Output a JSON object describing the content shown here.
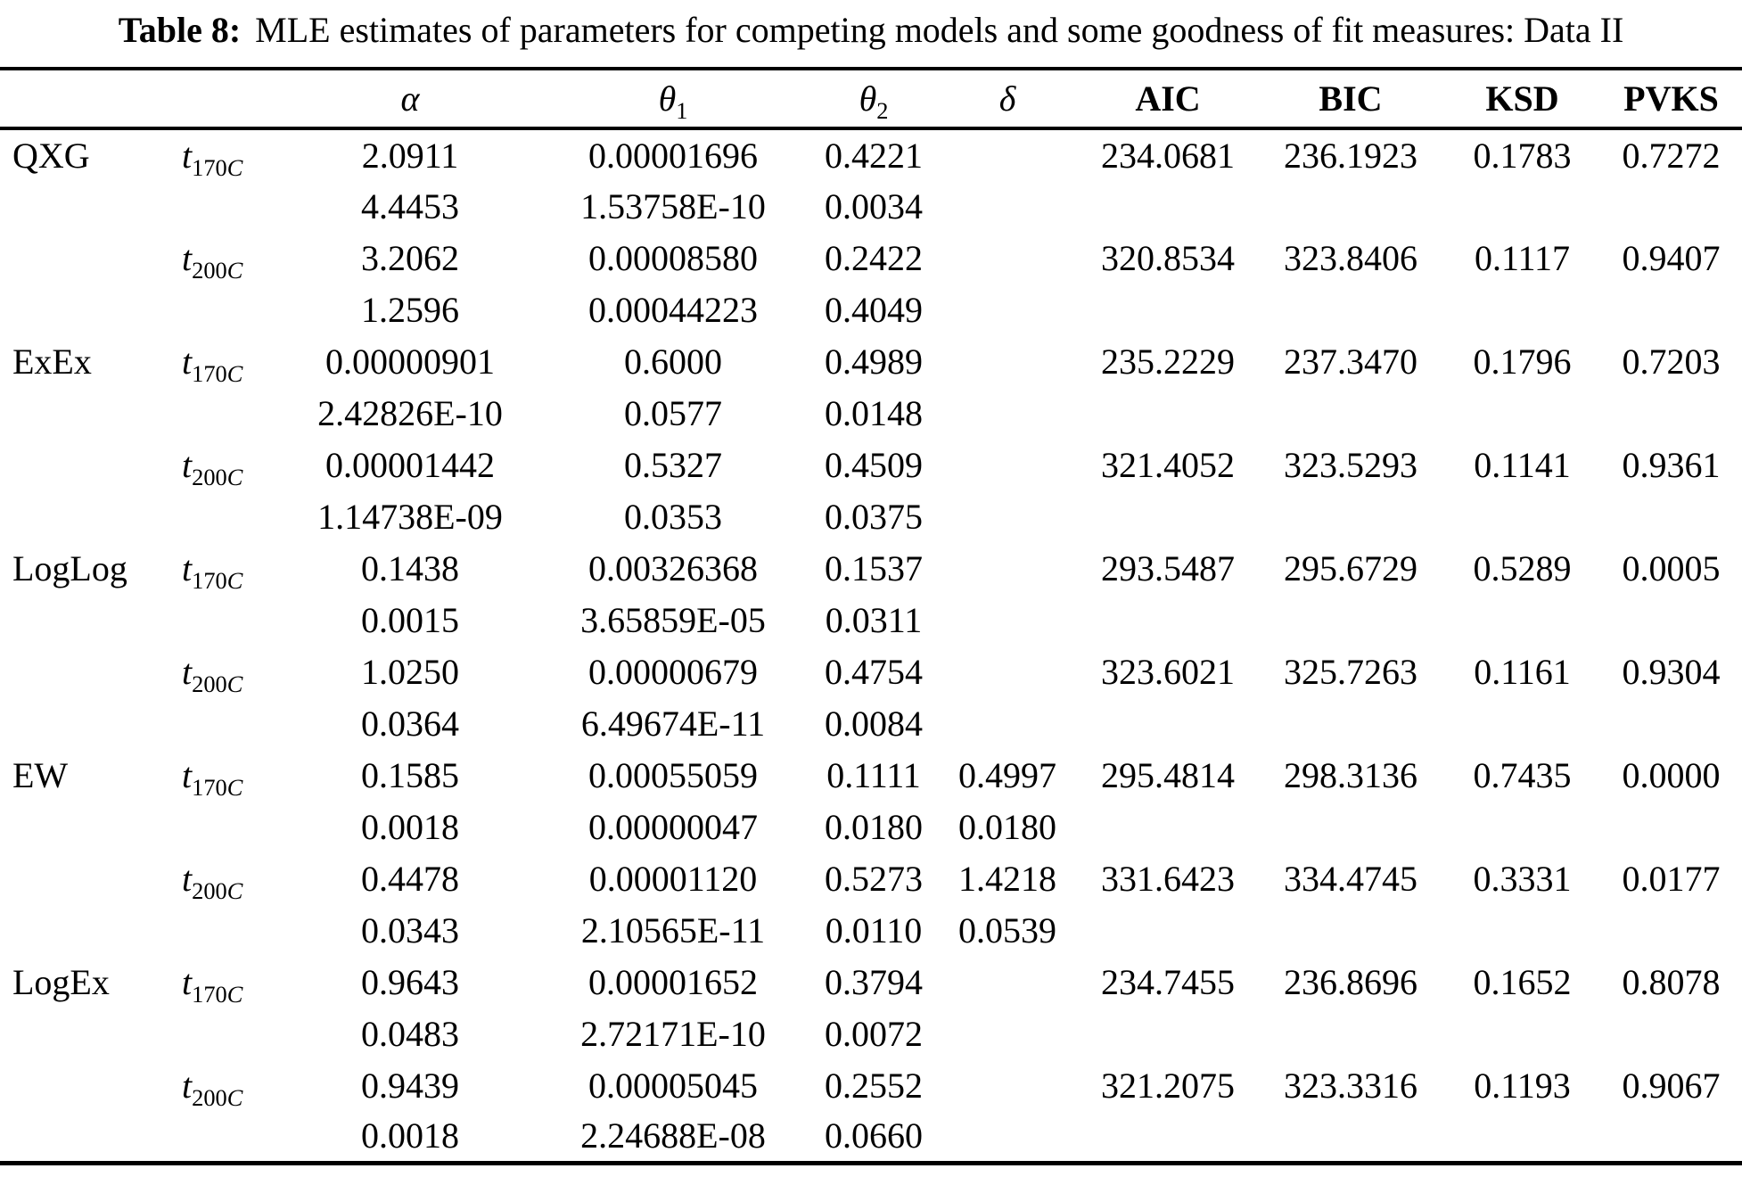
{
  "title": {
    "label": "Table 8:",
    "text": "MLE estimates of parameters for competing models and some goodness of fit measures: Data II"
  },
  "table": {
    "columns": [
      "model",
      "t",
      "alpha",
      "theta1",
      "theta2",
      "delta",
      "aic",
      "bic",
      "ksd",
      "pvks"
    ],
    "headers": {
      "model": {
        "base": ""
      },
      "t": {
        "base": ""
      },
      "alpha": {
        "base": "α",
        "italic": true
      },
      "theta1": {
        "base": "θ",
        "sub": "1",
        "italic": true
      },
      "theta2": {
        "base": "θ",
        "sub": "2",
        "italic": true
      },
      "delta": {
        "base": "δ",
        "italic": true
      },
      "aic": {
        "base": "AIC",
        "bold": true
      },
      "bic": {
        "base": "BIC",
        "bold": true
      },
      "ksd": {
        "base": "KSD",
        "bold": true
      },
      "pvks": {
        "base": "PVKS",
        "bold": true
      }
    },
    "rows": [
      {
        "model": "QXG",
        "t": {
          "base": "t",
          "sub": "170C",
          "italic": true
        },
        "alpha": "2.0911",
        "theta1": "0.00001696",
        "theta2": "0.4221",
        "delta": "",
        "aic": "234.0681",
        "bic": "236.1923",
        "ksd": "0.1783",
        "pvks": "0.7272"
      },
      {
        "model": "",
        "t": "",
        "alpha": "4.4453",
        "theta1": "1.53758E-10",
        "theta2": "0.0034",
        "delta": "",
        "aic": "",
        "bic": "",
        "ksd": "",
        "pvks": ""
      },
      {
        "model": "",
        "t": {
          "base": "t",
          "sub": "200C",
          "italic": true
        },
        "alpha": "3.2062",
        "theta1": "0.00008580",
        "theta2": "0.2422",
        "delta": "",
        "aic": "320.8534",
        "bic": "323.8406",
        "ksd": "0.1117",
        "pvks": "0.9407"
      },
      {
        "model": "",
        "t": "",
        "alpha": "1.2596",
        "theta1": "0.00044223",
        "theta2": "0.4049",
        "delta": "",
        "aic": "",
        "bic": "",
        "ksd": "",
        "pvks": ""
      },
      {
        "model": "ExEx",
        "t": {
          "base": "t",
          "sub": "170C",
          "italic": true
        },
        "alpha": "0.00000901",
        "theta1": "0.6000",
        "theta2": "0.4989",
        "delta": "",
        "aic": "235.2229",
        "bic": "237.3470",
        "ksd": "0.1796",
        "pvks": "0.7203"
      },
      {
        "model": "",
        "t": "",
        "alpha": "2.42826E-10",
        "theta1": "0.0577",
        "theta2": "0.0148",
        "delta": "",
        "aic": "",
        "bic": "",
        "ksd": "",
        "pvks": ""
      },
      {
        "model": "",
        "t": {
          "base": "t",
          "sub": "200C",
          "italic": true
        },
        "alpha": "0.00001442",
        "theta1": "0.5327",
        "theta2": "0.4509",
        "delta": "",
        "aic": "321.4052",
        "bic": "323.5293",
        "ksd": "0.1141",
        "pvks": "0.9361"
      },
      {
        "model": "",
        "t": "",
        "alpha": "1.14738E-09",
        "theta1": "0.0353",
        "theta2": "0.0375",
        "delta": "",
        "aic": "",
        "bic": "",
        "ksd": "",
        "pvks": ""
      },
      {
        "model": "LogLog",
        "t": {
          "base": "t",
          "sub": "170C",
          "italic": true
        },
        "alpha": "0.1438",
        "theta1": "0.00326368",
        "theta2": "0.1537",
        "delta": "",
        "aic": "293.5487",
        "bic": "295.6729",
        "ksd": "0.5289",
        "pvks": "0.0005"
      },
      {
        "model": "",
        "t": "",
        "alpha": "0.0015",
        "theta1": "3.65859E-05",
        "theta2": "0.0311",
        "delta": "",
        "aic": "",
        "bic": "",
        "ksd": "",
        "pvks": ""
      },
      {
        "model": "",
        "t": {
          "base": "t",
          "sub": "200C",
          "italic": true
        },
        "alpha": "1.0250",
        "theta1": "0.00000679",
        "theta2": "0.4754",
        "delta": "",
        "aic": "323.6021",
        "bic": "325.7263",
        "ksd": "0.1161",
        "pvks": "0.9304"
      },
      {
        "model": "",
        "t": "",
        "alpha": "0.0364",
        "theta1": "6.49674E-11",
        "theta2": "0.0084",
        "delta": "",
        "aic": "",
        "bic": "",
        "ksd": "",
        "pvks": ""
      },
      {
        "model": "EW",
        "t": {
          "base": "t",
          "sub": "170C",
          "italic": true
        },
        "alpha": "0.1585",
        "theta1": "0.00055059",
        "theta2": "0.1111",
        "delta": "0.4997",
        "aic": "295.4814",
        "bic": "298.3136",
        "ksd": "0.7435",
        "pvks": "0.0000"
      },
      {
        "model": "",
        "t": "",
        "alpha": "0.0018",
        "theta1": "0.00000047",
        "theta2": "0.0180",
        "delta": "0.0180",
        "aic": "",
        "bic": "",
        "ksd": "",
        "pvks": ""
      },
      {
        "model": "",
        "t": {
          "base": "t",
          "sub": "200C",
          "italic": true
        },
        "alpha": "0.4478",
        "theta1": "0.00001120",
        "theta2": "0.5273",
        "delta": "1.4218",
        "aic": "331.6423",
        "bic": "334.4745",
        "ksd": "0.3331",
        "pvks": "0.0177"
      },
      {
        "model": "",
        "t": "",
        "alpha": "0.0343",
        "theta1": "2.10565E-11",
        "theta2": "0.0110",
        "delta": "0.0539",
        "aic": "",
        "bic": "",
        "ksd": "",
        "pvks": ""
      },
      {
        "model": "LogEx",
        "t": {
          "base": "t",
          "sub": "170C",
          "italic": true
        },
        "alpha": "0.9643",
        "theta1": "0.00001652",
        "theta2": "0.3794",
        "delta": "",
        "aic": "234.7455",
        "bic": "236.8696",
        "ksd": "0.1652",
        "pvks": "0.8078"
      },
      {
        "model": "",
        "t": "",
        "alpha": "0.0483",
        "theta1": "2.72171E-10",
        "theta2": "0.0072",
        "delta": "",
        "aic": "",
        "bic": "",
        "ksd": "",
        "pvks": ""
      },
      {
        "model": "",
        "t": {
          "base": "t",
          "sub": "200C",
          "italic": true
        },
        "alpha": "0.9439",
        "theta1": "0.00005045",
        "theta2": "0.2552",
        "delta": "",
        "aic": "321.2075",
        "bic": "323.3316",
        "ksd": "0.1193",
        "pvks": "0.9067"
      },
      {
        "model": "",
        "t": "",
        "alpha": "0.0018",
        "theta1": "2.24688E-08",
        "theta2": "0.0660",
        "delta": "",
        "aic": "",
        "bic": "",
        "ksd": "",
        "pvks": ""
      }
    ]
  }
}
